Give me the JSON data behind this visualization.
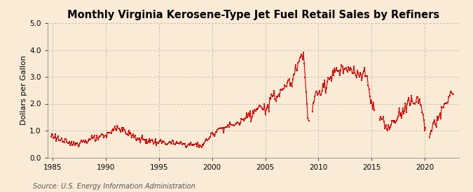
{
  "title": "Monthly Virginia Kerosene-Type Jet Fuel Retail Sales by Refiners",
  "ylabel": "Dollars per Gallon",
  "source": "Source: U.S. Energy Information Administration",
  "background_color": "#faebd7",
  "line_color": "#cc0000",
  "xlim": [
    1984.5,
    2023.2
  ],
  "ylim": [
    0.0,
    5.0
  ],
  "yticks": [
    0.0,
    1.0,
    2.0,
    3.0,
    4.0,
    5.0
  ],
  "xticks": [
    1985,
    1990,
    1995,
    2000,
    2005,
    2010,
    2015,
    2020
  ],
  "title_fontsize": 10.5,
  "ylabel_fontsize": 8,
  "source_fontsize": 7,
  "tick_fontsize": 7.5
}
